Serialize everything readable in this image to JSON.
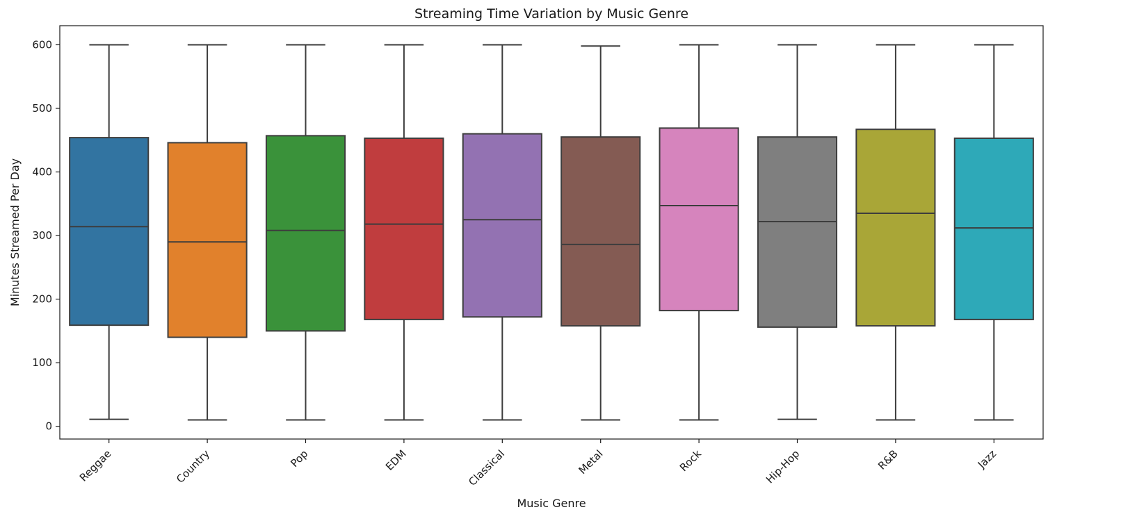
{
  "chart_data": {
    "type": "box",
    "title": "Streaming Time Variation by Music Genre",
    "xlabel": "Music Genre",
    "ylabel": "Minutes Streamed Per Day",
    "ylim": [
      -20,
      630
    ],
    "yticks": [
      0,
      100,
      200,
      300,
      400,
      500,
      600
    ],
    "grid": false,
    "categories": [
      "Reggae",
      "Country",
      "Pop",
      "EDM",
      "Classical",
      "Metal",
      "Rock",
      "Hip-Hop",
      "R&B",
      "Jazz"
    ],
    "boxes": [
      {
        "genre": "Reggae",
        "min": 11,
        "q1": 159,
        "median": 314,
        "q3": 454,
        "max": 600,
        "color": "#3274a1"
      },
      {
        "genre": "Country",
        "min": 10,
        "q1": 140,
        "median": 290,
        "q3": 446,
        "max": 600,
        "color": "#e1812c"
      },
      {
        "genre": "Pop",
        "min": 10,
        "q1": 150,
        "median": 308,
        "q3": 457,
        "max": 600,
        "color": "#3a923a"
      },
      {
        "genre": "EDM",
        "min": 10,
        "q1": 168,
        "median": 318,
        "q3": 453,
        "max": 600,
        "color": "#c03d3e"
      },
      {
        "genre": "Classical",
        "min": 10,
        "q1": 172,
        "median": 325,
        "q3": 460,
        "max": 600,
        "color": "#9372b2"
      },
      {
        "genre": "Metal",
        "min": 10,
        "q1": 158,
        "median": 286,
        "q3": 455,
        "max": 598,
        "color": "#845b53"
      },
      {
        "genre": "Rock",
        "min": 10,
        "q1": 182,
        "median": 347,
        "q3": 469,
        "max": 600,
        "color": "#d684bd"
      },
      {
        "genre": "Hip-Hop",
        "min": 11,
        "q1": 156,
        "median": 322,
        "q3": 455,
        "max": 600,
        "color": "#7f7f7f"
      },
      {
        "genre": "R&B",
        "min": 10,
        "q1": 158,
        "median": 335,
        "q3": 467,
        "max": 600,
        "color": "#a9a637"
      },
      {
        "genre": "Jazz",
        "min": 10,
        "q1": 168,
        "median": 312,
        "q3": 453,
        "max": 600,
        "color": "#2ea9b8"
      }
    ],
    "line_color": "#3d3d3d"
  }
}
